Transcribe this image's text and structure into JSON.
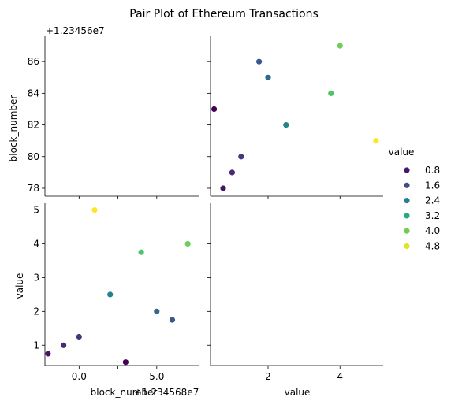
{
  "chart_data": {
    "type": "scatter",
    "title": "Pair Plot of Ethereum Transactions",
    "variables": [
      "block_number",
      "value"
    ],
    "hue": "value",
    "block_number_offset_label": "+1.23456e7",
    "block_number_offset_label_x": "+1.234568e7",
    "points": [
      {
        "block_number": 12345678,
        "value": 0.75
      },
      {
        "block_number": 12345679,
        "value": 1.0
      },
      {
        "block_number": 12345680,
        "value": 1.25
      },
      {
        "block_number": 12345681,
        "value": 5.0
      },
      {
        "block_number": 12345682,
        "value": 2.5
      },
      {
        "block_number": 12345683,
        "value": 0.5
      },
      {
        "block_number": 12345684,
        "value": 3.75
      },
      {
        "block_number": 12345685,
        "value": 2.0
      },
      {
        "block_number": 12345686,
        "value": 1.75
      },
      {
        "block_number": 12345687,
        "value": 4.0
      }
    ],
    "axes": {
      "block_number_as_y": {
        "ylim": [
          77.5,
          87.6
        ],
        "ticks": [
          "78",
          "80",
          "82",
          "84",
          "86"
        ]
      },
      "value_as_y": {
        "ylim": [
          0.4,
          5.2
        ],
        "ticks": [
          "1",
          "2",
          "3",
          "4",
          "5"
        ]
      },
      "block_number_as_x": {
        "xlim": [
          -2.2,
          7.7
        ],
        "ticks": [
          "0.0",
          "5.0"
        ],
        "extra_tick": "2.5"
      },
      "value_as_x": {
        "xlim": [
          0.4,
          5.2
        ],
        "ticks": [
          "2",
          "4"
        ]
      }
    },
    "xlabels": [
      "block_number",
      "value"
    ],
    "ylabels": [
      "block_number",
      "value"
    ],
    "legend": {
      "title": "value",
      "placement": "right",
      "entries": [
        {
          "label": "0.8",
          "value": 0.8
        },
        {
          "label": "1.6",
          "value": 1.6
        },
        {
          "label": "2.4",
          "value": 2.4
        },
        {
          "label": "3.2",
          "value": 3.2
        },
        {
          "label": "4.0",
          "value": 4.0
        },
        {
          "label": "4.8",
          "value": 4.8
        }
      ]
    },
    "colormap": {
      "name": "viridis",
      "range": [
        0.5,
        5.0
      ],
      "stops": [
        "#440154",
        "#482878",
        "#3e4989",
        "#31688e",
        "#26828e",
        "#1f9e89",
        "#35b779",
        "#6ece58",
        "#b5de2b",
        "#fde725"
      ]
    }
  }
}
